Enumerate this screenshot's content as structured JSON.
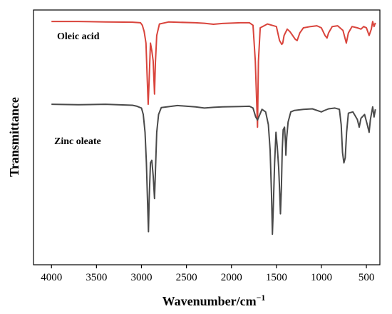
{
  "chart_data": {
    "type": "line",
    "xlabel": "Wavenumber/cm",
    "xlabel_superscript": "−1",
    "ylabel": "Transmittance",
    "xlim": [
      4200,
      350
    ],
    "ylim": [
      0,
      1
    ],
    "x_reversed": true,
    "x_ticks": [
      4000,
      3500,
      3000,
      2500,
      2000,
      1500,
      1000,
      500
    ],
    "y_ticks": [],
    "grid": false,
    "legend": "none",
    "series": [
      {
        "name": "Oleic acid",
        "color": "#d9443c",
        "points": [
          [
            4000,
            0.955
          ],
          [
            3700,
            0.955
          ],
          [
            3400,
            0.953
          ],
          [
            3100,
            0.952
          ],
          [
            3010,
            0.95
          ],
          [
            2990,
            0.94
          ],
          [
            2970,
            0.915
          ],
          [
            2950,
            0.87
          ],
          [
            2935,
            0.72
          ],
          [
            2925,
            0.63
          ],
          [
            2915,
            0.72
          ],
          [
            2900,
            0.87
          ],
          [
            2885,
            0.84
          ],
          [
            2870,
            0.8
          ],
          [
            2855,
            0.67
          ],
          [
            2845,
            0.79
          ],
          [
            2830,
            0.9
          ],
          [
            2800,
            0.945
          ],
          [
            2700,
            0.953
          ],
          [
            2400,
            0.95
          ],
          [
            2300,
            0.948
          ],
          [
            2200,
            0.944
          ],
          [
            2100,
            0.947
          ],
          [
            1900,
            0.95
          ],
          [
            1800,
            0.95
          ],
          [
            1760,
            0.94
          ],
          [
            1735,
            0.8
          ],
          [
            1710,
            0.54
          ],
          [
            1700,
            0.8
          ],
          [
            1680,
            0.93
          ],
          [
            1600,
            0.945
          ],
          [
            1500,
            0.935
          ],
          [
            1465,
            0.88
          ],
          [
            1440,
            0.865
          ],
          [
            1430,
            0.87
          ],
          [
            1415,
            0.9
          ],
          [
            1380,
            0.925
          ],
          [
            1350,
            0.915
          ],
          [
            1290,
            0.885
          ],
          [
            1270,
            0.88
          ],
          [
            1240,
            0.91
          ],
          [
            1200,
            0.93
          ],
          [
            1120,
            0.935
          ],
          [
            1050,
            0.938
          ],
          [
            1000,
            0.93
          ],
          [
            960,
            0.9
          ],
          [
            938,
            0.89
          ],
          [
            920,
            0.91
          ],
          [
            880,
            0.935
          ],
          [
            820,
            0.938
          ],
          [
            760,
            0.92
          ],
          [
            723,
            0.87
          ],
          [
            700,
            0.91
          ],
          [
            660,
            0.935
          ],
          [
            600,
            0.93
          ],
          [
            560,
            0.925
          ],
          [
            530,
            0.935
          ],
          [
            500,
            0.93
          ],
          [
            470,
            0.9
          ],
          [
            445,
            0.925
          ],
          [
            430,
            0.955
          ],
          [
            415,
            0.935
          ],
          [
            400,
            0.95
          ]
        ]
      },
      {
        "name": "Zinc oleate",
        "color": "#4a4a4a",
        "points": [
          [
            4000,
            0.63
          ],
          [
            3700,
            0.628
          ],
          [
            3400,
            0.63
          ],
          [
            3100,
            0.626
          ],
          [
            3050,
            0.622
          ],
          [
            3000,
            0.615
          ],
          [
            2980,
            0.59
          ],
          [
            2960,
            0.52
          ],
          [
            2945,
            0.4
          ],
          [
            2930,
            0.22
          ],
          [
            2922,
            0.13
          ],
          [
            2915,
            0.25
          ],
          [
            2900,
            0.4
          ],
          [
            2885,
            0.41
          ],
          [
            2870,
            0.35
          ],
          [
            2855,
            0.26
          ],
          [
            2845,
            0.36
          ],
          [
            2830,
            0.52
          ],
          [
            2810,
            0.59
          ],
          [
            2780,
            0.617
          ],
          [
            2600,
            0.625
          ],
          [
            2400,
            0.62
          ],
          [
            2300,
            0.615
          ],
          [
            2200,
            0.618
          ],
          [
            2100,
            0.62
          ],
          [
            1900,
            0.621
          ],
          [
            1800,
            0.622
          ],
          [
            1760,
            0.615
          ],
          [
            1730,
            0.58
          ],
          [
            1710,
            0.568
          ],
          [
            1690,
            0.585
          ],
          [
            1660,
            0.61
          ],
          [
            1620,
            0.6
          ],
          [
            1590,
            0.55
          ],
          [
            1570,
            0.45
          ],
          [
            1555,
            0.28
          ],
          [
            1545,
            0.12
          ],
          [
            1535,
            0.22
          ],
          [
            1520,
            0.4
          ],
          [
            1505,
            0.52
          ],
          [
            1490,
            0.46
          ],
          [
            1475,
            0.38
          ],
          [
            1465,
            0.3
          ],
          [
            1455,
            0.2
          ],
          [
            1445,
            0.3
          ],
          [
            1435,
            0.45
          ],
          [
            1425,
            0.53
          ],
          [
            1410,
            0.54
          ],
          [
            1400,
            0.48
          ],
          [
            1395,
            0.43
          ],
          [
            1385,
            0.5
          ],
          [
            1370,
            0.56
          ],
          [
            1340,
            0.6
          ],
          [
            1300,
            0.606
          ],
          [
            1200,
            0.61
          ],
          [
            1100,
            0.612
          ],
          [
            1000,
            0.6
          ],
          [
            970,
            0.605
          ],
          [
            920,
            0.612
          ],
          [
            850,
            0.615
          ],
          [
            800,
            0.61
          ],
          [
            780,
            0.55
          ],
          [
            765,
            0.44
          ],
          [
            750,
            0.4
          ],
          [
            735,
            0.42
          ],
          [
            720,
            0.52
          ],
          [
            700,
            0.595
          ],
          [
            650,
            0.6
          ],
          [
            600,
            0.57
          ],
          [
            580,
            0.54
          ],
          [
            560,
            0.575
          ],
          [
            520,
            0.59
          ],
          [
            490,
            0.55
          ],
          [
            470,
            0.52
          ],
          [
            455,
            0.57
          ],
          [
            430,
            0.62
          ],
          [
            415,
            0.58
          ],
          [
            400,
            0.61
          ]
        ]
      }
    ]
  }
}
